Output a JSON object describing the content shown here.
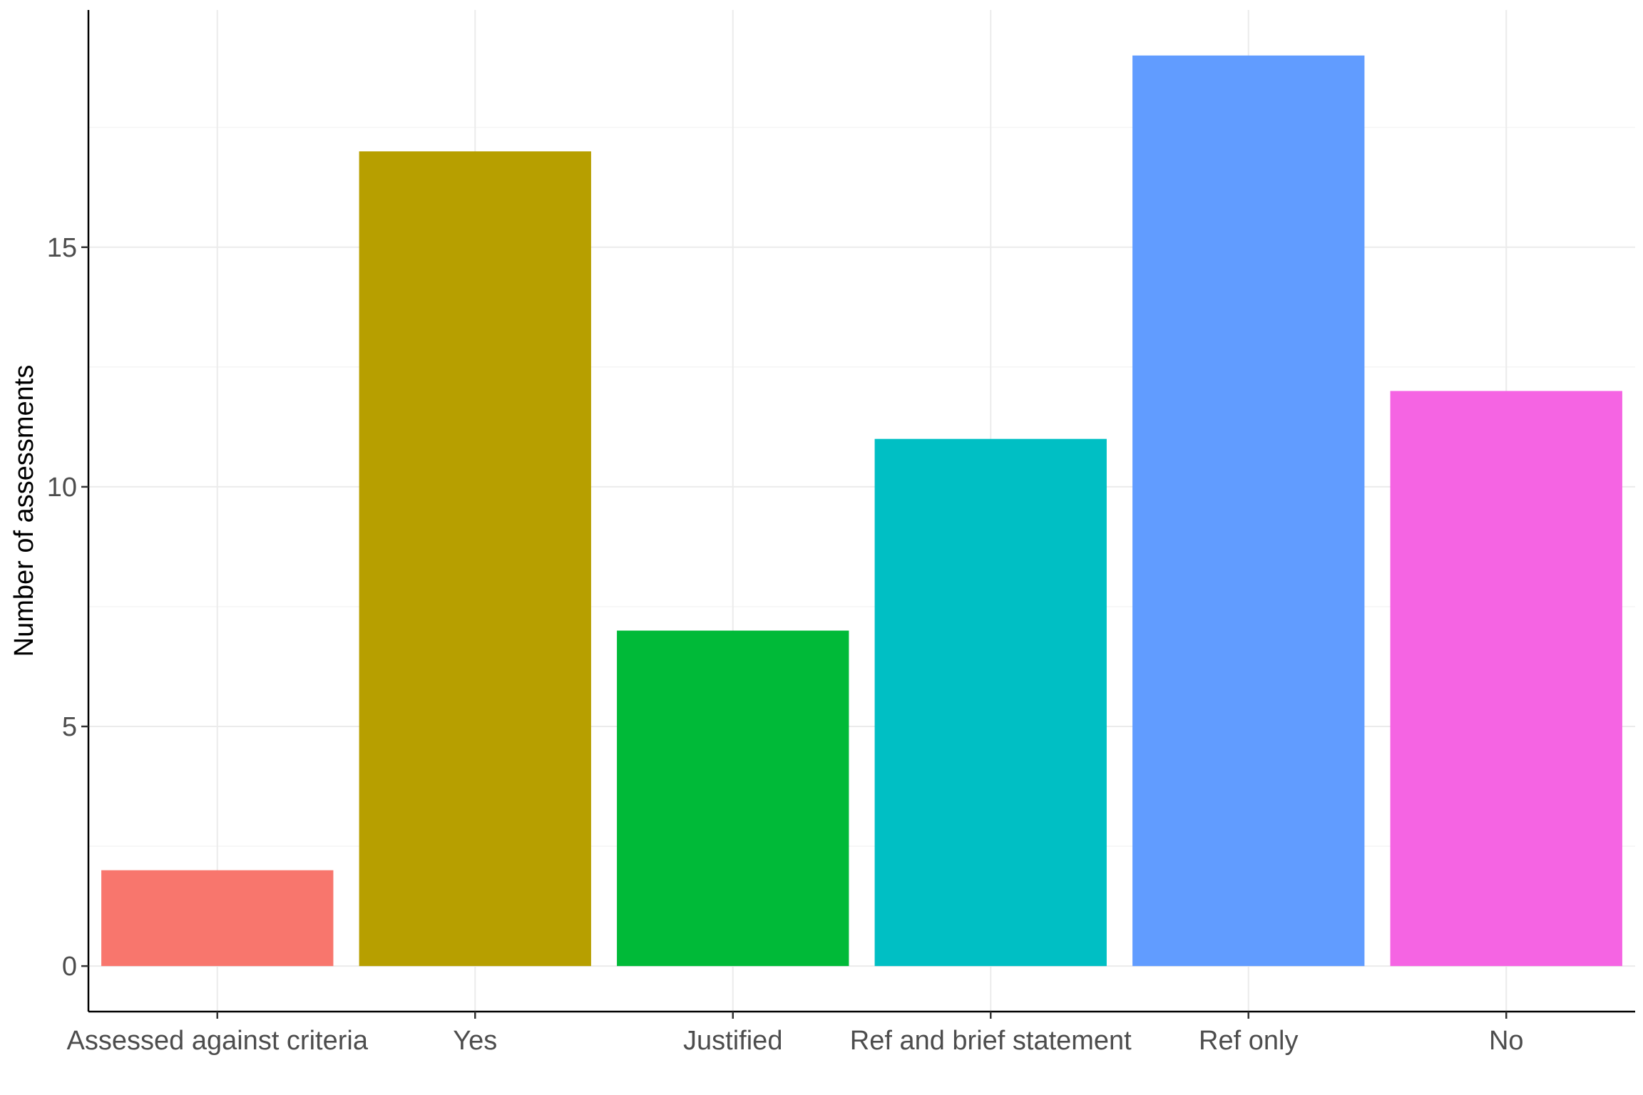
{
  "chart_data": {
    "type": "bar",
    "title": "",
    "xlabel": "",
    "ylabel": "Number of assessments",
    "categories": [
      "Assessed against criteria",
      "Yes",
      "Justified",
      "Ref and brief statement",
      "Ref only",
      "No"
    ],
    "values": [
      2,
      17,
      7,
      11,
      19,
      12
    ],
    "colors": [
      "#F8766D",
      "#B79F00",
      "#00BA38",
      "#00BFC4",
      "#619CFF",
      "#F564E3"
    ],
    "ylim": [
      -0.95,
      19.95
    ],
    "yticks": [
      0,
      5,
      10,
      15
    ],
    "grid": true,
    "legend": "none"
  }
}
